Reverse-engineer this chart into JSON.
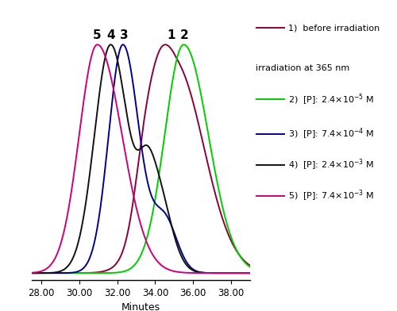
{
  "xlabel": "Minutes",
  "xlim": [
    27.5,
    39.0
  ],
  "ylim": [
    -0.03,
    1.1
  ],
  "xticks": [
    28.0,
    30.0,
    32.0,
    34.0,
    36.0,
    38.0
  ],
  "colors": {
    "1": "#8B003A",
    "2": "#00CC00",
    "3": "#00008B",
    "4": "#111111",
    "5": "#CC0077"
  },
  "peak_labels": {
    "5": 30.95,
    "4": 31.65,
    "3": 32.35,
    "1": 34.85,
    "2": 35.55
  },
  "legend_color_1": "#8B003A",
  "legend_color_2": "#00CC00",
  "legend_color_3": "#00008B",
  "legend_color_4": "#111111",
  "legend_color_5": "#CC0077"
}
